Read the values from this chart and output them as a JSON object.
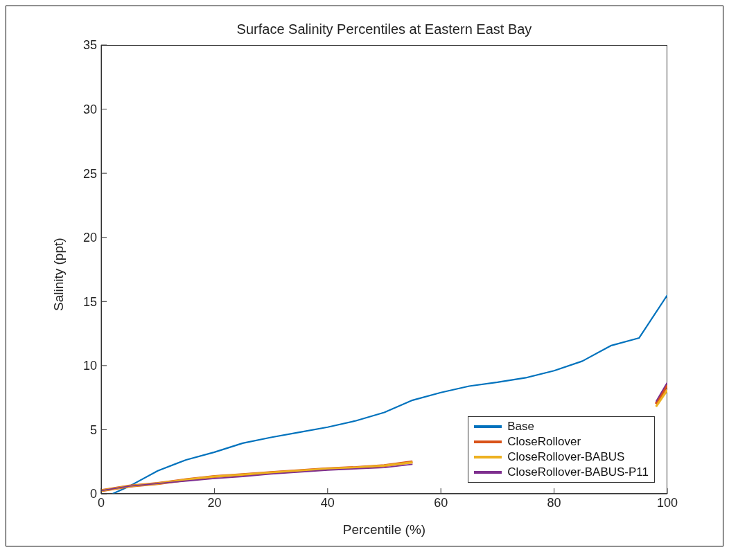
{
  "chart_data": {
    "type": "line",
    "title": "Surface Salinity Percentiles at Eastern East Bay",
    "xlabel": "Percentile (%)",
    "ylabel": "Salinity (ppt)",
    "xlim": [
      0,
      100
    ],
    "xticks": [
      0,
      20,
      40,
      60,
      80,
      100
    ],
    "ylim": [
      0,
      35
    ],
    "yticks": [
      0,
      5,
      10,
      15,
      20,
      25,
      30,
      35
    ],
    "grid": false,
    "legend": "bottom right",
    "line_style": "solid",
    "series": [
      {
        "name": "Base",
        "color": "#0072bd",
        "x": [
          2,
          5,
          10,
          15,
          20,
          25,
          30,
          35,
          40,
          45,
          50,
          55,
          60,
          65,
          70,
          75,
          80,
          85,
          90,
          95,
          100
        ],
        "values": [
          0,
          0.6,
          1.8,
          2.65,
          3.25,
          3.95,
          4.4,
          4.8,
          5.2,
          5.7,
          6.35,
          7.3,
          7.9,
          8.4,
          8.7,
          9.05,
          9.6,
          10.35,
          11.55,
          12.15,
          15.5
        ]
      },
      {
        "name": "CloseRollover",
        "color": "#d95319",
        "x": [
          0,
          5,
          10,
          15,
          20,
          25,
          30,
          35,
          40,
          45,
          50,
          55,
          60,
          98,
          100
        ],
        "values": [
          0.25,
          0.6,
          0.8,
          1.1,
          1.35,
          1.5,
          1.65,
          1.8,
          1.95,
          2.05,
          2.2,
          2.5,
          null,
          7.0,
          8.5
        ]
      },
      {
        "name": "CloseRollover-BABUS",
        "color": "#edb120",
        "x": [
          0,
          5,
          10,
          15,
          20,
          25,
          30,
          35,
          40,
          45,
          50,
          55,
          60,
          98,
          100
        ],
        "values": [
          0.25,
          0.6,
          0.8,
          1.1,
          1.35,
          1.5,
          1.65,
          1.8,
          1.95,
          2.05,
          2.2,
          2.45,
          null,
          6.8,
          8.1
        ]
      },
      {
        "name": "CloseRollover-BABUS-P11",
        "color": "#7e2f8e",
        "x": [
          0,
          5,
          10,
          15,
          20,
          25,
          30,
          35,
          40,
          45,
          50,
          55,
          60,
          98,
          100
        ],
        "values": [
          0.25,
          0.6,
          0.8,
          1.0,
          1.2,
          1.35,
          1.55,
          1.7,
          1.85,
          1.95,
          2.05,
          2.3,
          null,
          7.2,
          8.7
        ]
      }
    ]
  }
}
